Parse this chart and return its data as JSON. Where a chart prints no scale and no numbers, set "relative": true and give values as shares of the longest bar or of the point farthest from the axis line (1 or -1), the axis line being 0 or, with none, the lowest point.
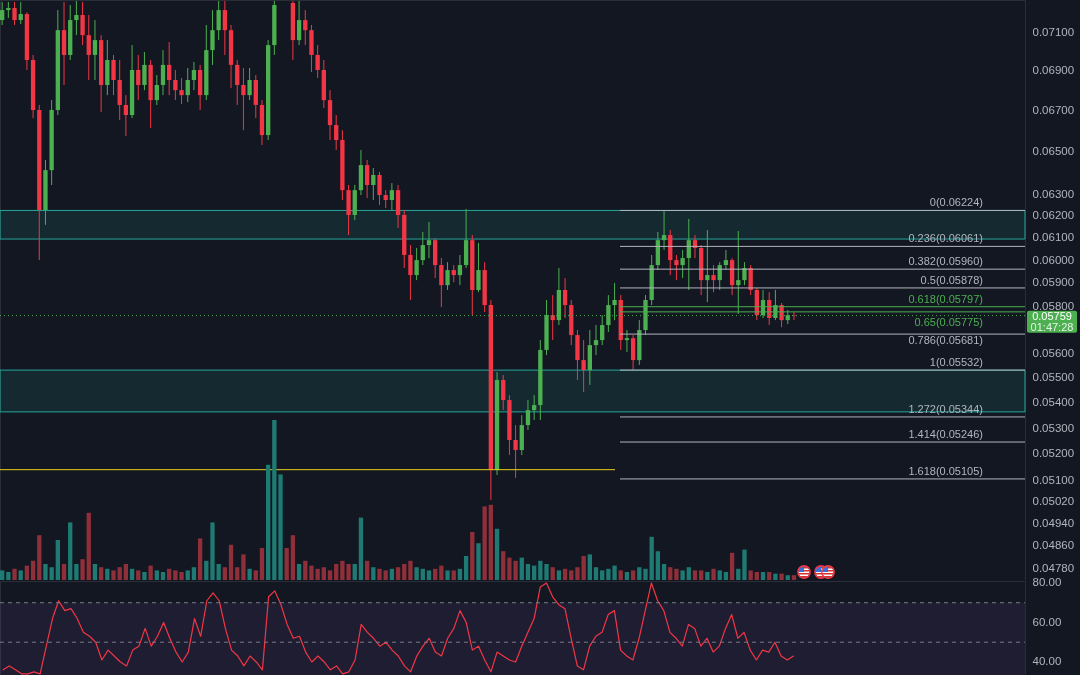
{
  "chart_data": [
    {
      "type": "candlestick",
      "log": true,
      "ylim": [
        0.04738,
        0.0727
      ],
      "yticks": [
        {
          "value": 0.0478,
          "label": "0.04780"
        },
        {
          "value": 0.0486,
          "label": "0.04860"
        },
        {
          "value": 0.0494,
          "label": "0.04940"
        },
        {
          "value": 0.0502,
          "label": "0.05020"
        },
        {
          "value": 0.051,
          "label": "0.05100"
        },
        {
          "value": 0.052,
          "label": "0.05200"
        },
        {
          "value": 0.053,
          "label": "0.05300"
        },
        {
          "value": 0.054,
          "label": "0.05400"
        },
        {
          "value": 0.055,
          "label": "0.05500"
        },
        {
          "value": 0.056,
          "label": "0.05600"
        },
        {
          "value": 0.058,
          "label": "0.05800"
        },
        {
          "value": 0.059,
          "label": "0.05900"
        },
        {
          "value": 0.06,
          "label": "0.06000"
        },
        {
          "value": 0.061,
          "label": "0.06100"
        },
        {
          "value": 0.062,
          "label": "0.06200"
        },
        {
          "value": 0.063,
          "label": "0.06300"
        },
        {
          "value": 0.065,
          "label": "0.06500"
        },
        {
          "value": 0.067,
          "label": "0.06700"
        },
        {
          "value": 0.069,
          "label": "0.06900"
        },
        {
          "value": 0.071,
          "label": "0.07100"
        }
      ],
      "categories": [
        null,
        null,
        null,
        null,
        null,
        null,
        null,
        null,
        null,
        null,
        null,
        null,
        null,
        null,
        null,
        null,
        null,
        null,
        null,
        null,
        null,
        null,
        null,
        null,
        null,
        null,
        null,
        null,
        null,
        null,
        null,
        null,
        null,
        null,
        null,
        null,
        null,
        null,
        null,
        null,
        null,
        null,
        null,
        null,
        null,
        null,
        null,
        null,
        null,
        null,
        null,
        null,
        null,
        null,
        null,
        null,
        null,
        null,
        null,
        null,
        null,
        null,
        null,
        null,
        null,
        null,
        null,
        null,
        null,
        null,
        null,
        null,
        null,
        null,
        null,
        null,
        null,
        null,
        null,
        null,
        null,
        null,
        null,
        null,
        null,
        null,
        null,
        null,
        null,
        null,
        null,
        null,
        null,
        null,
        null,
        null,
        null,
        null,
        null,
        null,
        null,
        null,
        null,
        null,
        null,
        null,
        null,
        null,
        null,
        null,
        null,
        null,
        null,
        null,
        null,
        null,
        null,
        null,
        null,
        null,
        null,
        null,
        null,
        null,
        null,
        null,
        null,
        null,
        null,
        null,
        null,
        null,
        null,
        null,
        null,
        null,
        null,
        null,
        null,
        null,
        null,
        null,
        null,
        null,
        null,
        null,
        null,
        null,
        null,
        null,
        null,
        null,
        null,
        null,
        null,
        null,
        null,
        null,
        null,
        null,
        null,
        null,
        null,
        null,
        null,
        null
      ],
      "ohlc": [
        [
          0.07163,
          0.07259,
          0.07137,
          0.07216
        ],
        [
          0.07216,
          0.07259,
          0.07174,
          0.07227
        ],
        [
          0.07227,
          0.07259,
          0.07137,
          0.07163
        ],
        [
          0.07163,
          0.07259,
          0.07142,
          0.07195
        ],
        [
          0.07195,
          0.07205,
          0.06904,
          0.06955
        ],
        [
          0.06955,
          0.06981,
          0.06663,
          0.06703
        ],
        [
          0.06703,
          0.06728,
          0.06,
          0.06226
        ],
        [
          0.06226,
          0.0646,
          0.06158,
          0.06412
        ],
        [
          0.06412,
          0.06752,
          0.06342,
          0.06703
        ],
        [
          0.06703,
          0.07216,
          0.06678,
          0.0711
        ],
        [
          0.0711,
          0.07259,
          0.06828,
          0.06981
        ],
        [
          0.06981,
          0.07243,
          0.06955,
          0.07163
        ],
        [
          0.07163,
          0.07265,
          0.07084,
          0.0719
        ],
        [
          0.0719,
          0.07259,
          0.07032,
          0.07084
        ],
        [
          0.07084,
          0.0719,
          0.06853,
          0.06981
        ],
        [
          0.06981,
          0.07163,
          0.06853,
          0.07058
        ],
        [
          0.07058,
          0.07084,
          0.06693,
          0.06828
        ],
        [
          0.06828,
          0.07058,
          0.06777,
          0.06955
        ],
        [
          0.06955,
          0.06981,
          0.06777,
          0.06853
        ],
        [
          0.06853,
          0.06955,
          0.06653,
          0.06728
        ],
        [
          0.06728,
          0.06777,
          0.06575,
          0.06678
        ],
        [
          0.06678,
          0.07032,
          0.06663,
          0.06904
        ],
        [
          0.06904,
          0.06981,
          0.06752,
          0.06828
        ],
        [
          0.06828,
          0.06996,
          0.06802,
          0.0693
        ],
        [
          0.0693,
          0.06955,
          0.06614,
          0.06752
        ],
        [
          0.06752,
          0.06878,
          0.06728,
          0.06828
        ],
        [
          0.06828,
          0.07006,
          0.06777,
          0.0693
        ],
        [
          0.0693,
          0.07048,
          0.06777,
          0.06853
        ],
        [
          0.06853,
          0.06904,
          0.06752,
          0.06802
        ],
        [
          0.06802,
          0.06863,
          0.06732,
          0.06777
        ],
        [
          0.06777,
          0.06914,
          0.06742,
          0.06853
        ],
        [
          0.06853,
          0.06945,
          0.06802,
          0.06904
        ],
        [
          0.06904,
          0.0693,
          0.06703,
          0.06777
        ],
        [
          0.06777,
          0.07137,
          0.06752,
          0.07006
        ],
        [
          0.07006,
          0.07216,
          0.0693,
          0.0711
        ],
        [
          0.0711,
          0.07265,
          0.07058,
          0.07216
        ],
        [
          0.07216,
          0.07265,
          0.06981,
          0.0711
        ],
        [
          0.0711,
          0.07137,
          0.06812,
          0.0693
        ],
        [
          0.0693,
          0.06955,
          0.06728,
          0.06828
        ],
        [
          0.06828,
          0.06914,
          0.06604,
          0.06777
        ],
        [
          0.06777,
          0.06914,
          0.06752,
          0.06853
        ],
        [
          0.06853,
          0.06878,
          0.06663,
          0.06728
        ],
        [
          0.06728,
          0.06752,
          0.06532,
          0.0658
        ],
        [
          0.0658,
          0.07058,
          0.06556,
          0.07032
        ],
        [
          0.07032,
          0.07265,
          0.06981,
          0.07243
        ],
        null,
        null,
        [
          0.07254,
          0.07265,
          0.06955,
          0.07058
        ],
        [
          0.07058,
          0.07265,
          0.07032,
          0.07163
        ],
        [
          0.07163,
          0.07216,
          0.07032,
          0.0711
        ],
        [
          0.0711,
          0.07137,
          0.06894,
          0.06981
        ],
        [
          0.06981,
          0.07032,
          0.06863,
          0.06904
        ],
        [
          0.06904,
          0.06955,
          0.06713,
          0.06752
        ],
        [
          0.06752,
          0.06802,
          0.06556,
          0.06629
        ],
        [
          0.06629,
          0.06678,
          0.06508,
          0.06556
        ],
        [
          0.06556,
          0.06604,
          0.06272,
          0.06318
        ],
        [
          0.06318,
          0.06342,
          0.06112,
          0.06203
        ],
        [
          0.06203,
          0.06342,
          0.0618,
          0.06318
        ],
        [
          0.06318,
          0.06508,
          0.06295,
          0.06436
        ],
        [
          0.06436,
          0.0646,
          0.06281,
          0.06342
        ],
        [
          0.06342,
          0.06422,
          0.06272,
          0.06389
        ],
        [
          0.06389,
          0.06403,
          0.06249,
          0.06295
        ],
        [
          0.06295,
          0.06318,
          0.06235,
          0.06272
        ],
        [
          0.06272,
          0.06351,
          0.06226,
          0.06318
        ],
        [
          0.06318,
          0.06342,
          0.06144,
          0.06203
        ],
        [
          0.06203,
          0.06226,
          0.05965,
          0.06023
        ],
        [
          0.06023,
          0.06067,
          0.05826,
          0.05934
        ],
        [
          0.05934,
          0.06054,
          0.05912,
          0.06
        ],
        [
          0.06,
          0.06126,
          0.05978,
          0.06067
        ],
        [
          0.06067,
          0.06171,
          0.06009,
          0.06089
        ],
        [
          0.06089,
          0.06098,
          0.05921,
          0.05978
        ],
        [
          0.05978,
          0.06009,
          0.05796,
          0.0589
        ],
        [
          0.0589,
          0.05991,
          0.05869,
          0.05956
        ],
        [
          0.05956,
          0.05978,
          0.05903,
          0.05934
        ],
        [
          0.05934,
          0.06023,
          0.0589,
          0.05978
        ],
        [
          0.05978,
          0.06231,
          0.05965,
          0.06089
        ],
        [
          0.06089,
          0.06112,
          0.05761,
          0.05869
        ],
        [
          0.05869,
          0.06076,
          0.0586,
          0.05956
        ],
        [
          0.05956,
          0.05991,
          0.05774,
          0.05804
        ],
        [
          0.05804,
          0.05826,
          0.05026,
          0.05139
        ],
        [
          0.05139,
          0.05524,
          0.0512,
          0.05492
        ],
        [
          0.05492,
          0.05512,
          0.05371,
          0.05411
        ],
        [
          0.05411,
          0.05431,
          0.05196,
          0.05254
        ],
        [
          0.05254,
          0.05312,
          0.05109,
          0.05215
        ],
        [
          0.05215,
          0.05351,
          0.05196,
          0.05312
        ],
        [
          0.05312,
          0.05411,
          0.05293,
          0.05371
        ],
        [
          0.05371,
          0.05431,
          0.05332,
          0.05391
        ],
        [
          0.05391,
          0.05656,
          0.05332,
          0.05615
        ],
        [
          0.05615,
          0.05826,
          0.05594,
          0.05761
        ],
        [
          0.05761,
          0.05847,
          0.05656,
          0.0574
        ],
        [
          0.0574,
          0.05965,
          0.05719,
          0.05869
        ],
        [
          0.05869,
          0.05921,
          0.05749,
          0.05804
        ],
        [
          0.05804,
          0.05826,
          0.05635,
          0.05677
        ],
        [
          0.05677,
          0.05698,
          0.05492,
          0.05573
        ],
        [
          0.05573,
          0.05656,
          0.05443,
          0.05532
        ],
        [
          0.05532,
          0.05698,
          0.05472,
          0.05635
        ],
        [
          0.05635,
          0.05719,
          0.05594,
          0.05656
        ],
        [
          0.05656,
          0.05761,
          0.05635,
          0.05719
        ],
        [
          0.05719,
          0.05847,
          0.0569,
          0.05804
        ],
        [
          0.05804,
          0.05899,
          0.0574,
          0.05826
        ],
        [
          0.05826,
          0.05847,
          0.05615,
          0.05656
        ],
        [
          0.05656,
          0.05698,
          0.05606,
          0.05664
        ],
        [
          0.05664,
          0.05677,
          0.05532,
          0.05573
        ],
        [
          0.05573,
          0.0574,
          0.05553,
          0.05698
        ],
        [
          0.05698,
          0.05847,
          0.05677,
          0.05826
        ],
        [
          0.05826,
          0.06023,
          0.05804,
          0.05978
        ],
        [
          0.05978,
          0.06126,
          0.05956,
          0.06089
        ],
        [
          0.06089,
          0.06221,
          0.06045,
          0.06112
        ],
        [
          0.06112,
          0.06135,
          0.05934,
          0.06
        ],
        [
          0.06,
          0.06023,
          0.05912,
          0.05978
        ],
        [
          0.05978,
          0.06045,
          0.05921,
          0.06009
        ],
        [
          0.06009,
          0.06185,
          0.05869,
          0.06089
        ],
        [
          0.06089,
          0.06112,
          0.06009,
          0.06054
        ],
        [
          0.06054,
          0.06067,
          0.05847,
          0.05912
        ],
        [
          0.05912,
          0.06135,
          0.05817,
          0.05934
        ],
        [
          0.05934,
          0.05978,
          0.0586,
          0.05912
        ],
        [
          0.05912,
          0.05991,
          0.05869,
          0.05978
        ],
        [
          0.05978,
          0.06045,
          0.05956,
          0.06
        ],
        [
          0.06,
          0.06009,
          0.05847,
          0.0589
        ],
        [
          0.0589,
          0.0613,
          0.05766,
          0.05912
        ],
        [
          0.05912,
          0.05991,
          0.0589,
          0.05965
        ],
        [
          0.05965,
          0.05978,
          0.05847,
          0.05869
        ],
        [
          0.05869,
          0.05877,
          0.0574,
          0.05761
        ],
        [
          0.05761,
          0.05869,
          0.05749,
          0.05826
        ],
        [
          0.05826,
          0.0586,
          0.05719,
          0.05749
        ],
        [
          0.05749,
          0.05869,
          0.0574,
          0.05804
        ],
        [
          0.05804,
          0.05813,
          0.0571,
          0.0574
        ],
        [
          0.0574,
          0.05783,
          0.05723,
          0.05761
        ],
        [
          0.05761,
          0.05774,
          0.0574,
          0.05759
        ],
        null,
        null,
        null,
        null,
        null,
        null,
        null,
        null,
        null,
        null,
        null,
        null,
        null,
        null,
        null,
        null,
        null,
        null,
        null,
        null,
        null,
        null,
        null,
        null,
        null,
        null,
        null,
        null,
        null,
        null,
        null,
        null,
        null,
        null,
        null,
        null,
        null
      ],
      "colors": [
        "#4caf50",
        "#4caf50",
        "#f23645",
        "#4caf50",
        "#f23645",
        "#f23645",
        "#f23645",
        "#4caf50",
        "#4caf50",
        "#4caf50",
        "#f23645",
        "#4caf50",
        "#4caf50",
        "#f23645",
        "#f23645",
        "#4caf50",
        "#f23645",
        "#4caf50",
        "#f23645",
        "#f23645",
        "#f23645",
        "#4caf50",
        "#f23645",
        "#4caf50",
        "#f23645",
        "#4caf50",
        "#4caf50",
        "#f23645",
        "#f23645",
        "#f23645",
        "#4caf50",
        "#4caf50",
        "#f23645",
        "#4caf50",
        "#4caf50",
        "#4caf50",
        "#f23645",
        "#f23645",
        "#f23645",
        "#f23645",
        "#4caf50",
        "#f23645",
        "#f23645",
        "#4caf50",
        "#4caf50",
        null,
        null,
        "#f23645",
        "#4caf50",
        "#f23645",
        "#f23645",
        "#f23645",
        "#f23645",
        "#f23645",
        "#f23645",
        "#f23645",
        "#f23645",
        "#4caf50",
        "#4caf50",
        "#f23645",
        "#4caf50",
        "#f23645",
        "#f23645",
        "#4caf50",
        "#f23645",
        "#f23645",
        "#f23645",
        "#4caf50",
        "#4caf50",
        "#4caf50",
        "#f23645",
        "#f23645",
        "#4caf50",
        "#f23645",
        "#4caf50",
        "#4caf50",
        "#f23645",
        "#4caf50",
        "#f23645",
        "#f23645",
        "#4caf50",
        "#f23645",
        "#f23645",
        "#f23645",
        "#4caf50",
        "#4caf50",
        "#4caf50",
        "#4caf50",
        "#4caf50",
        "#f23645",
        "#4caf50",
        "#f23645",
        "#f23645",
        "#f23645",
        "#f23645",
        "#4caf50",
        "#4caf50",
        "#4caf50",
        "#4caf50",
        "#4caf50",
        "#f23645",
        "#4caf50",
        "#f23645",
        "#4caf50",
        "#4caf50",
        "#4caf50",
        "#4caf50",
        "#4caf50",
        "#f23645",
        "#f23645",
        "#4caf50",
        "#4caf50",
        "#f23645",
        "#f23645",
        "#4caf50",
        "#f23645",
        "#4caf50",
        "#4caf50",
        "#f23645",
        "#4caf50",
        "#4caf50",
        "#f23645",
        "#f23645",
        "#4caf50",
        "#f23645",
        "#4caf50",
        "#f23645",
        "#4caf50",
        "#f23645",
        null,
        null,
        null,
        null,
        null,
        null,
        null,
        null,
        null,
        null,
        null,
        null,
        null,
        null,
        null,
        null,
        null,
        null,
        null,
        null,
        null,
        null,
        null,
        null,
        null,
        null,
        null,
        null,
        null,
        null,
        null,
        null,
        null,
        null,
        null,
        null,
        null
      ],
      "bands": [
        {
          "axis": "y",
          "from": 0.06094,
          "to": 0.06224,
          "color": "#26a69a"
        },
        {
          "axis": "y",
          "from": 0.05364,
          "to": 0.05532,
          "color": "#26a69a"
        }
      ],
      "ref_lines": [
        {
          "axis": "y",
          "value": 0.06224,
          "label": "0(0.06224)",
          "color": "#b2b5be"
        },
        {
          "axis": "y",
          "value": 0.06061,
          "label": "0.236(0.06061)",
          "color": "#b2b5be"
        },
        {
          "axis": "y",
          "value": 0.0596,
          "label": "0.382(0.05960)",
          "color": "#b2b5be"
        },
        {
          "axis": "y",
          "value": 0.05878,
          "label": "0.5(0.05878)",
          "color": "#b2b5be"
        },
        {
          "axis": "y",
          "value": 0.05797,
          "label": "0.618(0.05797)",
          "color": "#4caf50"
        },
        {
          "axis": "y",
          "value": 0.05775,
          "label": "0.65(0.05775)",
          "color": "#4caf50"
        },
        {
          "axis": "y",
          "value": 0.05681,
          "label": "0.786(0.05681)",
          "color": "#b2b5be"
        },
        {
          "axis": "y",
          "value": 0.05532,
          "label": "1(0.05532)",
          "color": "#b2b5be"
        },
        {
          "axis": "y",
          "value": 0.05344,
          "label": "1.272(0.05344)",
          "color": "#b2b5be"
        },
        {
          "axis": "y",
          "value": 0.05246,
          "label": "1.414(0.05246)",
          "color": "#b2b5be"
        },
        {
          "axis": "y",
          "value": 0.05105,
          "label": "1.618(0.05105)",
          "color": "#b2b5be"
        },
        {
          "axis": "y",
          "value": 0.0514,
          "color": "#e8cf1a"
        },
        {
          "axis": "y",
          "value": 0.05759,
          "label": "0.05759",
          "color": "#4caf50",
          "line_style": "dotted"
        }
      ],
      "annotations": [
        "01:47:28"
      ]
    },
    {
      "type": "bar",
      "relative": true,
      "categories": [
        null,
        null,
        null,
        null,
        null,
        null,
        null,
        null,
        null,
        null,
        null,
        null,
        null,
        null,
        null,
        null,
        null,
        null,
        null,
        null,
        null,
        null,
        null,
        null,
        null,
        null,
        null,
        null,
        null,
        null,
        null,
        null,
        null,
        null,
        null,
        null,
        null,
        null,
        null,
        null,
        null,
        null,
        null,
        null,
        null,
        null,
        null,
        null,
        null,
        null,
        null,
        null,
        null,
        null,
        null,
        null,
        null,
        null,
        null,
        null,
        null,
        null,
        null,
        null,
        null,
        null,
        null,
        null,
        null,
        null,
        null,
        null,
        null,
        null,
        null,
        null,
        null,
        null,
        null,
        null,
        null,
        null,
        null,
        null,
        null,
        null,
        null,
        null,
        null,
        null,
        null,
        null,
        null,
        null,
        null,
        null,
        null,
        null,
        null,
        null,
        null,
        null,
        null,
        null,
        null,
        null,
        null,
        null,
        null,
        null,
        null,
        null,
        null,
        null,
        null,
        null,
        null,
        null,
        null,
        null,
        null,
        null,
        null,
        null,
        null,
        null,
        null,
        null,
        null,
        null,
        null,
        null,
        null,
        null,
        null,
        null,
        null,
        null,
        null,
        null,
        null,
        null,
        null,
        null,
        null,
        null,
        null,
        null,
        null,
        null,
        null,
        null,
        null,
        null,
        null,
        null,
        null,
        null,
        null,
        null,
        null,
        null,
        null,
        null,
        null,
        null
      ],
      "values": [
        0.06,
        0.05,
        0.07,
        0.06,
        0.09,
        0.12,
        0.28,
        0.1,
        0.08,
        0.25,
        0.1,
        0.36,
        0.1,
        0.13,
        0.42,
        0.1,
        0.08,
        0.07,
        0.06,
        0.08,
        0.1,
        0.07,
        0.06,
        0.05,
        0.09,
        0.06,
        0.05,
        0.07,
        0.06,
        0.05,
        0.06,
        0.08,
        0.26,
        0.12,
        0.36,
        0.1,
        0.08,
        0.22,
        0.08,
        0.16,
        0.07,
        0.06,
        0.2,
        0.72,
        1,
        0.66,
        0.2,
        0.28,
        0.1,
        0.12,
        0.09,
        0.07,
        0.08,
        0.06,
        0.1,
        0.12,
        0.1,
        0.1,
        0.39,
        0.12,
        0.08,
        0.07,
        0.06,
        0.07,
        0.08,
        0.1,
        0.12,
        0.08,
        0.07,
        0.06,
        0.07,
        0.09,
        0.06,
        0.06,
        0.07,
        0.15,
        0.3,
        0.23,
        0.46,
        0.47,
        0.32,
        0.18,
        0.14,
        0.12,
        0.14,
        0.1,
        0.09,
        0.12,
        0.1,
        0.08,
        0.06,
        0.07,
        0.06,
        0.08,
        0.15,
        0.16,
        0.08,
        0.06,
        0.07,
        0.09,
        0.06,
        0.05,
        0.06,
        0.08,
        0.07,
        0.27,
        0.18,
        0.1,
        0.08,
        0.07,
        0.06,
        0.08,
        0.06,
        0.06,
        0.05,
        0.07,
        0.06,
        0.05,
        0.17,
        0.07,
        0.19,
        0.06,
        0.05,
        0.05,
        0.05,
        0.04,
        0.04,
        0.03,
        0.03,
        null,
        null,
        null,
        null,
        null,
        null,
        null,
        null,
        null,
        null,
        null,
        null,
        null,
        null,
        null,
        null,
        null,
        null,
        null,
        null,
        null,
        null,
        null,
        null,
        null,
        null,
        null,
        null,
        null,
        null,
        null,
        null,
        null,
        null,
        null,
        null,
        null
      ],
      "colors": [
        "#1e7a72",
        "#1e7a72",
        "#8e2f39",
        "#1e7a72",
        "#8e2f39",
        "#8e2f39",
        "#8e2f39",
        "#1e7a72",
        "#1e7a72",
        "#1e7a72",
        "#8e2f39",
        "#1e7a72",
        "#1e7a72",
        "#8e2f39",
        "#8e2f39",
        "#1e7a72",
        "#8e2f39",
        "#1e7a72",
        "#8e2f39",
        "#8e2f39",
        "#8e2f39",
        "#1e7a72",
        "#8e2f39",
        "#1e7a72",
        "#8e2f39",
        "#1e7a72",
        "#1e7a72",
        "#8e2f39",
        "#8e2f39",
        "#8e2f39",
        "#1e7a72",
        "#1e7a72",
        "#8e2f39",
        "#1e7a72",
        "#1e7a72",
        "#1e7a72",
        "#8e2f39",
        "#8e2f39",
        "#8e2f39",
        "#8e2f39",
        "#1e7a72",
        "#8e2f39",
        "#8e2f39",
        "#1e7a72",
        "#1e7a72",
        "#1e7a72",
        "#8e2f39",
        "#8e2f39",
        "#1e7a72",
        "#8e2f39",
        "#8e2f39",
        "#8e2f39",
        "#8e2f39",
        "#8e2f39",
        "#8e2f39",
        "#8e2f39",
        "#8e2f39",
        "#1e7a72",
        "#1e7a72",
        "#8e2f39",
        "#1e7a72",
        "#8e2f39",
        "#8e2f39",
        "#1e7a72",
        "#8e2f39",
        "#8e2f39",
        "#8e2f39",
        "#1e7a72",
        "#1e7a72",
        "#1e7a72",
        "#8e2f39",
        "#8e2f39",
        "#1e7a72",
        "#8e2f39",
        "#1e7a72",
        "#1e7a72",
        "#8e2f39",
        "#1e7a72",
        "#8e2f39",
        "#8e2f39",
        "#1e7a72",
        "#8e2f39",
        "#8e2f39",
        "#8e2f39",
        "#1e7a72",
        "#1e7a72",
        "#1e7a72",
        "#1e7a72",
        "#1e7a72",
        "#8e2f39",
        "#1e7a72",
        "#8e2f39",
        "#8e2f39",
        "#8e2f39",
        "#8e2f39",
        "#1e7a72",
        "#1e7a72",
        "#1e7a72",
        "#1e7a72",
        "#1e7a72",
        "#8e2f39",
        "#1e7a72",
        "#8e2f39",
        "#1e7a72",
        "#1e7a72",
        "#1e7a72",
        "#1e7a72",
        "#1e7a72",
        "#8e2f39",
        "#8e2f39",
        "#1e7a72",
        "#1e7a72",
        "#8e2f39",
        "#8e2f39",
        "#1e7a72",
        "#8e2f39",
        "#1e7a72",
        "#1e7a72",
        "#8e2f39",
        "#1e7a72",
        "#1e7a72",
        "#8e2f39",
        "#8e2f39",
        "#1e7a72",
        "#8e2f39",
        "#1e7a72",
        "#8e2f39",
        "#1e7a72",
        "#8e2f39",
        null,
        null,
        null,
        null,
        null,
        null,
        null,
        null,
        null,
        null,
        null,
        null,
        null,
        null,
        null,
        null,
        null,
        null,
        null,
        null,
        null,
        null,
        null,
        null,
        null,
        null,
        null,
        null,
        null,
        null,
        null,
        null,
        null,
        null,
        null,
        null,
        null
      ]
    },
    {
      "type": "line",
      "color": "#f23645",
      "ylim": [
        33.4,
        81
      ],
      "yticks": [
        {
          "value": 40,
          "label": "40.00"
        },
        {
          "value": 60,
          "label": "60.00"
        },
        {
          "value": 80,
          "label": "80.00"
        }
      ],
      "categories": [
        null,
        null,
        null,
        null,
        null,
        null,
        null,
        null,
        null,
        null,
        null,
        null,
        null,
        null,
        null,
        null,
        null,
        null,
        null,
        null,
        null,
        null,
        null,
        null,
        null,
        null,
        null,
        null,
        null,
        null,
        null,
        null,
        null,
        null,
        null,
        null,
        null,
        null,
        null,
        null,
        null,
        null,
        null,
        null,
        null,
        null,
        null,
        null,
        null,
        null,
        null,
        null,
        null,
        null,
        null,
        null,
        null,
        null,
        null,
        null,
        null,
        null,
        null,
        null,
        null,
        null,
        null,
        null,
        null,
        null,
        null,
        null,
        null,
        null,
        null,
        null,
        null,
        null,
        null,
        null,
        null,
        null,
        null,
        null,
        null,
        null,
        null,
        null,
        null,
        null,
        null,
        null,
        null,
        null,
        null,
        null,
        null,
        null,
        null,
        null,
        null,
        null,
        null,
        null,
        null,
        null,
        null,
        null,
        null,
        null,
        null,
        null,
        null,
        null,
        null,
        null,
        null,
        null,
        null,
        null,
        null,
        null,
        null,
        null,
        null,
        null,
        null,
        null,
        null,
        null,
        null,
        null,
        null,
        null,
        null,
        null,
        null,
        null,
        null,
        null,
        null,
        null,
        null,
        null,
        null,
        null,
        null,
        null,
        null,
        null,
        null,
        null,
        null,
        null,
        null,
        null,
        null,
        null,
        null,
        null,
        null,
        null,
        null,
        null,
        null,
        null
      ],
      "values": [
        36,
        38,
        36,
        34,
        34,
        35,
        34,
        48,
        62,
        71,
        66,
        67,
        62,
        55,
        53,
        50,
        41,
        46,
        43,
        40,
        38,
        46,
        48,
        57,
        48,
        53,
        60,
        52,
        45,
        40,
        45,
        62,
        53,
        71,
        75,
        71,
        57,
        46,
        43,
        38,
        43,
        40,
        36,
        73,
        76,
        69,
        59,
        52,
        53,
        45,
        40,
        43,
        40,
        36,
        38,
        34,
        35,
        41,
        59,
        55,
        52,
        48,
        50,
        46,
        43,
        38,
        35,
        43,
        48,
        52,
        45,
        43,
        52,
        57,
        66,
        60,
        46,
        48,
        41,
        35,
        45,
        43,
        41,
        40,
        48,
        55,
        62,
        78,
        80,
        73,
        69,
        67,
        52,
        38,
        36,
        48,
        53,
        55,
        64,
        66,
        46,
        43,
        41,
        52,
        66,
        80,
        71,
        66,
        55,
        52,
        48,
        59,
        57,
        48,
        52,
        45,
        48,
        57,
        64,
        52,
        55,
        46,
        41,
        46,
        45,
        50,
        43,
        41,
        43,
        null,
        null,
        null,
        null,
        null,
        null,
        null,
        null,
        null,
        null,
        null,
        null,
        null,
        null,
        null,
        null,
        null,
        null,
        null,
        null,
        null,
        null,
        null,
        null,
        null,
        null,
        null,
        null,
        null,
        null,
        null,
        null,
        null,
        null,
        null,
        null,
        null
      ],
      "ref_lines": [
        {
          "axis": "y",
          "value": 70,
          "color": "#787b86",
          "line_style": "dashed"
        },
        {
          "axis": "y",
          "value": 50,
          "color": "#787b86",
          "line_style": "dashed"
        }
      ],
      "bands": [
        {
          "axis": "y",
          "from": 33.4,
          "to": 70,
          "color": "#7e57c2"
        }
      ]
    }
  ]
}
